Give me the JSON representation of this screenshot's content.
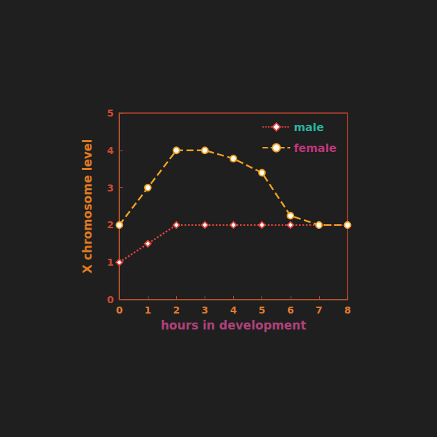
{
  "chart_data": {
    "type": "line",
    "xlabel": "hours in development",
    "ylabel": "X chromosome level",
    "x": [
      0,
      1,
      2,
      3,
      4,
      5,
      6,
      7,
      8
    ],
    "series": [
      {
        "name": "male",
        "color": "#e0443a",
        "marker": "diamond",
        "line_style": "dotted",
        "values": [
          1,
          1.5,
          2,
          2,
          2,
          2,
          2,
          2,
          2
        ]
      },
      {
        "name": "female",
        "color": "#f0a020",
        "marker": "circle",
        "line_style": "dashed",
        "values": [
          2,
          3,
          4,
          4,
          3.78,
          3.4,
          2.25,
          2,
          2
        ]
      }
    ],
    "xlim": [
      0,
      8
    ],
    "xticks": [
      0,
      1,
      2,
      3,
      4,
      5,
      6,
      7,
      8
    ],
    "ylim": [
      0,
      5
    ],
    "yticks": [
      0,
      1,
      2,
      3,
      4,
      5
    ],
    "grid": false,
    "legend": "upper right"
  }
}
